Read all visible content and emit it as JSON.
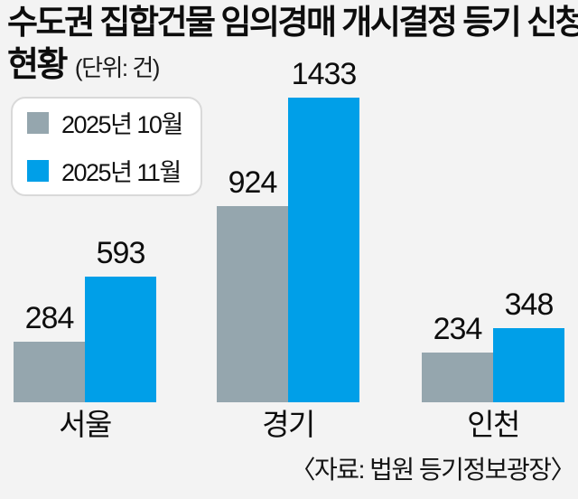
{
  "title": {
    "line1": "수도권 집합건물 임의경매 개시결정 등기 신청",
    "line2": "현황",
    "unit": "(단위: 건)"
  },
  "legend": {
    "items": [
      {
        "label": "2025년 10월",
        "color": "#95a6ae"
      },
      {
        "label": "2025년 11월",
        "color": "#009fe8"
      }
    ]
  },
  "source": "〈자료: 법원 등기정보광장〉",
  "colors": {
    "background": "#f3f3f3",
    "bar_gray": "#95a6ae",
    "bar_blue": "#009fe8",
    "text": "#0d0d0d",
    "legend_border": "#d9d9d9",
    "legend_background": "#ffffff"
  },
  "chart_data": {
    "type": "bar",
    "title": "수도권 집합건물 임의경매 개시결정 등기 신청 현황",
    "unit": "건",
    "categories": [
      "서울",
      "경기",
      "인천"
    ],
    "series": [
      {
        "name": "2025년 10월",
        "color": "#95a6ae",
        "values": [
          284,
          924,
          234
        ]
      },
      {
        "name": "2025년 11월",
        "color": "#009fe8",
        "values": [
          593,
          1433,
          348
        ]
      }
    ],
    "ylim": [
      0,
      1433
    ],
    "grid": false,
    "axis_lines": false,
    "value_labels": true,
    "legend_position": "top-left",
    "source": "자료: 법원 등기정보광장"
  }
}
